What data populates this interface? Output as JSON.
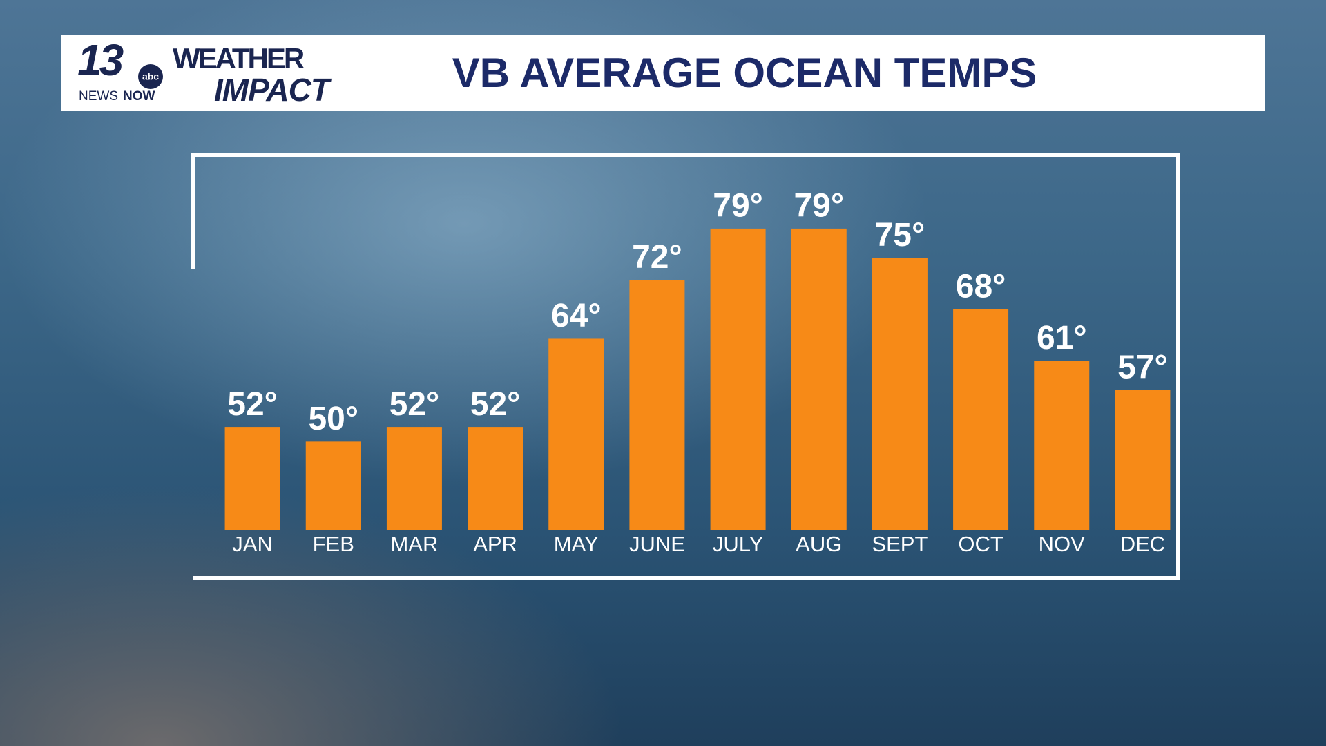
{
  "logo": {
    "channel": "13",
    "network": "abc",
    "news": "NEWS",
    "now": "NOW",
    "weather": "WEATHER",
    "impact": "IMPACT"
  },
  "chart_data": {
    "type": "bar",
    "title": "VB AVERAGE OCEAN TEMPS",
    "categories": [
      "JAN",
      "FEB",
      "MAR",
      "APR",
      "MAY",
      "JUNE",
      "JULY",
      "AUG",
      "SEPT",
      "OCT",
      "NOV",
      "DEC"
    ],
    "values": [
      52,
      50,
      52,
      52,
      64,
      72,
      79,
      79,
      75,
      68,
      61,
      57
    ],
    "value_labels": [
      "52°",
      "50°",
      "52°",
      "52°",
      "64°",
      "72°",
      "79°",
      "79°",
      "75°",
      "68°",
      "61°",
      "57°"
    ],
    "color": "#f78a17",
    "ylim": [
      38,
      82
    ]
  }
}
